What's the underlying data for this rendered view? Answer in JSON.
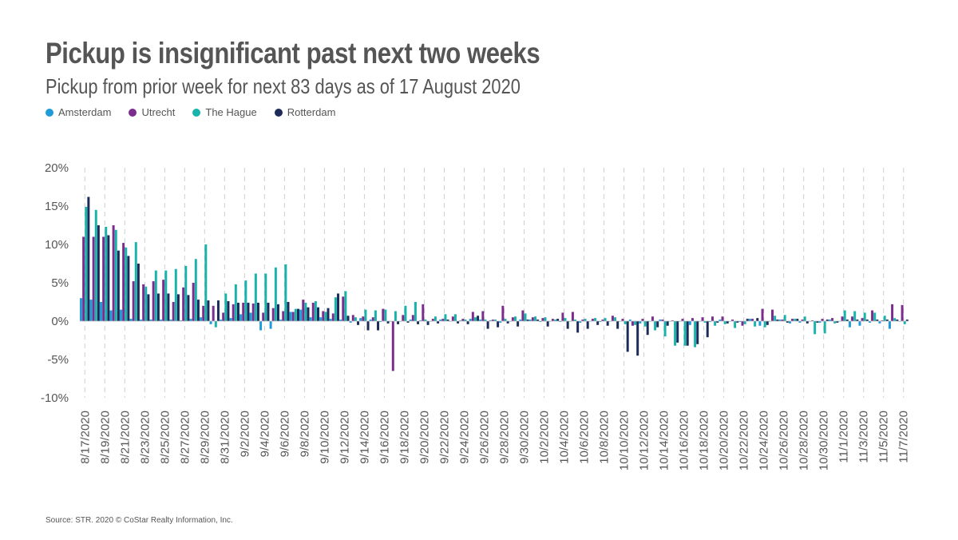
{
  "header": {
    "title": "Pickup is insignificant past next two weeks",
    "subtitle": "Pickup from prior week for next 83 days as of 17 August 2020"
  },
  "footer": {
    "source": "Source: STR. 2020 © CoStar Realty Information, Inc."
  },
  "chart_data": {
    "type": "bar",
    "title": "Pickup is insignificant past next two weeks",
    "subtitle": "Pickup from prior week for next 83 days as of 17 August 2020",
    "xlabel": "",
    "ylabel": "",
    "ylim": [
      -10,
      20
    ],
    "yticks": [
      "20%",
      "15%",
      "10%",
      "5%",
      "0%",
      "-5%",
      "-10%"
    ],
    "ytick_values": [
      20,
      15,
      10,
      5,
      0,
      -5,
      -10
    ],
    "grid": "vertical dashed",
    "legend": "top-left",
    "x_tick_labels": [
      "8/17/2020",
      "8/19/2020",
      "8/21/2020",
      "8/23/2020",
      "8/25/2020",
      "8/27/2020",
      "8/29/2020",
      "8/31/2020",
      "9/2/2020",
      "9/4/2020",
      "9/6/2020",
      "9/8/2020",
      "9/10/2020",
      "9/12/2020",
      "9/14/2020",
      "9/16/2020",
      "9/18/2020",
      "9/20/2020",
      "9/22/2020",
      "9/24/2020",
      "9/26/2020",
      "9/28/2020",
      "9/30/2020",
      "10/2/2020",
      "10/4/2020",
      "10/6/2020",
      "10/8/2020",
      "10/10/2020",
      "10/12/2020",
      "10/14/2020",
      "10/16/2020",
      "10/18/2020",
      "10/20/2020",
      "10/22/2020",
      "10/24/2020",
      "10/26/2020",
      "10/28/2020",
      "10/30/2020",
      "11/1/2020",
      "11/3/2020",
      "11/5/2020",
      "11/7/2020"
    ],
    "series": [
      {
        "name": "Amsterdam",
        "color": "#1f9bd7",
        "values": [
          3,
          2.8,
          2.5,
          1.4,
          1.5,
          0.3,
          0.2,
          0.2,
          0.2,
          0.2,
          0.1,
          0.3,
          0.5,
          -0.4,
          0.2,
          0.4,
          0.9,
          1.1,
          -1.2,
          -1,
          0.2,
          1.2,
          1.5,
          0.5,
          0.5,
          0.3,
          0.2,
          -0.2,
          0.4,
          0.2,
          -0.1,
          0,
          0,
          0.2,
          0.1,
          0,
          0.2,
          0,
          0.1,
          0.3,
          0.2,
          0.1,
          -0.2,
          0,
          0.2,
          0.2,
          -0.1,
          0,
          -0.1,
          0,
          -0.2,
          0,
          -0.1,
          0,
          0,
          0.2,
          -0.3,
          0,
          0.2,
          0,
          0,
          -0.5,
          0,
          -0.1,
          0.2,
          0,
          -0.1,
          0.3,
          -0.6,
          0,
          0.2,
          -0.3,
          -0.2,
          0,
          -0.2,
          0.2,
          0,
          -0.8,
          -0.6,
          -0.2,
          -0.3,
          -1.0,
          0
        ]
      },
      {
        "name": "Utrecht",
        "color": "#7b2d8e",
        "values": [
          11,
          11,
          11,
          12.5,
          10.2,
          5.2,
          4.8,
          5.2,
          5.4,
          2.5,
          4.4,
          5,
          2,
          2,
          1.1,
          2.2,
          2.4,
          2.3,
          1.1,
          1.7,
          1.3,
          1.2,
          2.8,
          2.4,
          1.3,
          1,
          3.2,
          0.8,
          0.6,
          0.5,
          1.6,
          -6.5,
          0.8,
          0.8,
          2.2,
          0.3,
          0.3,
          0.6,
          0.3,
          1.2,
          1.3,
          0.2,
          2,
          0.5,
          1.4,
          0.5,
          0.4,
          0.3,
          1.1,
          1.2,
          0.2,
          0.3,
          0.2,
          0.7,
          0.3,
          -0.6,
          0.3,
          0.6,
          0.2,
          0.1,
          0.3,
          0.4,
          0.5,
          0.6,
          0.6,
          0.2,
          -0.6,
          0.3,
          1.6,
          1.5,
          0.2,
          0.3,
          0.2,
          0.1,
          0.3,
          0.4,
          0.6,
          0.6,
          0.4,
          1.4,
          0.1,
          2.2,
          2.1
        ]
      },
      {
        "name": "The Hague",
        "color": "#18b3aa",
        "values": [
          14.9,
          14.5,
          12.3,
          11.9,
          9.6,
          10.3,
          4.5,
          6.6,
          6.6,
          6.8,
          7.2,
          8.1,
          10,
          -0.8,
          3.6,
          4.8,
          5.3,
          6.2,
          6.2,
          7,
          7.4,
          1.6,
          2.4,
          2.6,
          1.2,
          3.1,
          3.9,
          0.5,
          1.5,
          1.4,
          1.5,
          1.3,
          2,
          2.5,
          0.2,
          0.6,
          0.9,
          0.9,
          0.2,
          0.5,
          0.2,
          0.2,
          0.3,
          0.6,
          1,
          0.6,
          0.5,
          0.2,
          0.4,
          0.2,
          0.3,
          0.4,
          0.4,
          0.5,
          -0.4,
          -0.5,
          -0.7,
          -1.2,
          -2,
          -3.2,
          -3.2,
          -3.4,
          -0.2,
          -0.6,
          -0.4,
          -0.9,
          -0.4,
          -0.7,
          -0.8,
          0.7,
          0.8,
          0.3,
          0.6,
          -1.7,
          -1.6,
          -0.3,
          1.4,
          1.3,
          1.1,
          1.1,
          0.7,
          0.4,
          -0.4
        ]
      },
      {
        "name": "Rotterdam",
        "color": "#1c2b59",
        "values": [
          16.2,
          12.5,
          11.2,
          9.2,
          8.5,
          7.5,
          3.5,
          3.6,
          3.6,
          3.5,
          3.4,
          2.8,
          2.7,
          2.7,
          2.6,
          2.4,
          2.4,
          2.4,
          2.4,
          2.2,
          2.5,
          1.6,
          1.8,
          1.8,
          1.7,
          3.6,
          0.7,
          -0.5,
          -1.2,
          -1.2,
          -0.3,
          -0.4,
          -0.2,
          -0.4,
          -0.5,
          -0.3,
          0.2,
          -0.3,
          -0.4,
          0.7,
          -1,
          -0.8,
          -0.3,
          -0.7,
          0.2,
          0.2,
          -0.7,
          0.3,
          -1,
          -1.5,
          -1,
          -0.5,
          -0.6,
          -1,
          -4,
          -4.5,
          -1.8,
          -0.8,
          -0.6,
          -2.8,
          -3.2,
          -3,
          -2.1,
          -0.2,
          -0.3,
          -0.2,
          0.3,
          0.4,
          -0.5,
          0.2,
          -0.2,
          0.3,
          -0.3,
          -0.2,
          0.2,
          -0.2,
          0.2,
          0.2,
          0.2,
          0.2,
          0.2,
          0.2,
          0.2
        ]
      }
    ]
  }
}
